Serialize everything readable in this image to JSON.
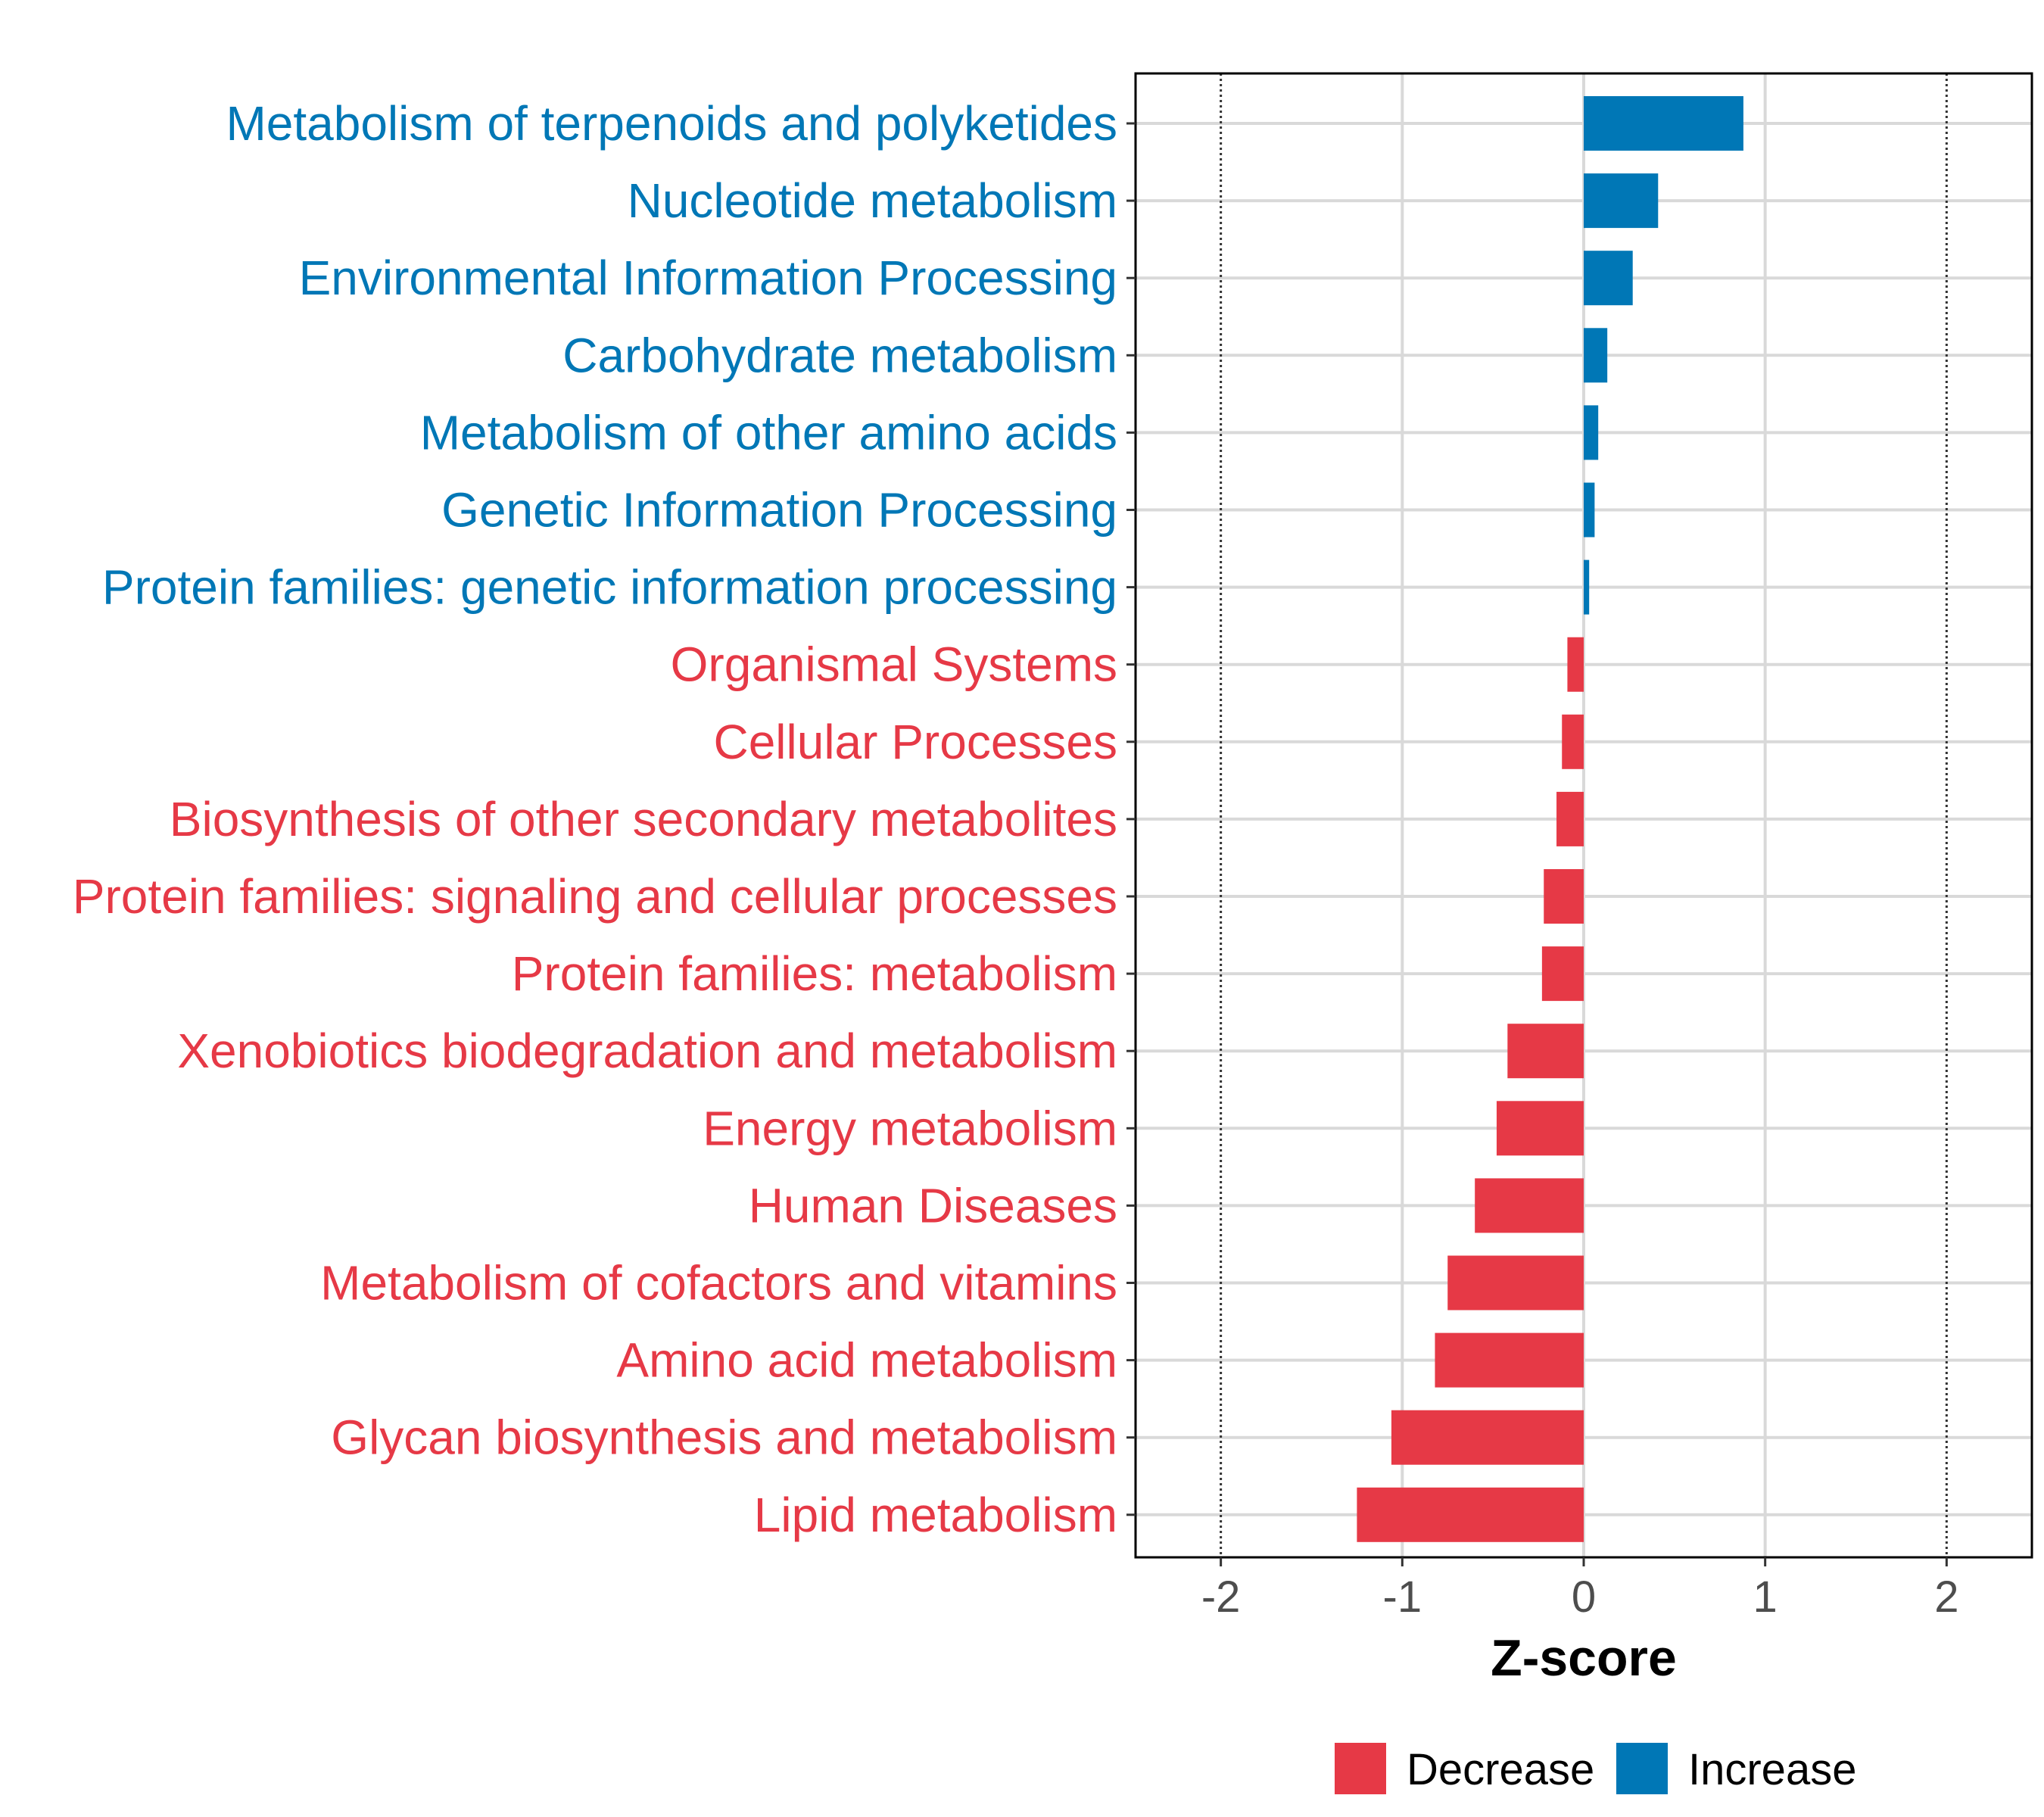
{
  "chart_data": {
    "type": "bar",
    "orientation": "horizontal",
    "xlabel": "Z-score",
    "ylabel": "",
    "xlim": [
      -2.47,
      2.47
    ],
    "xticks": [
      -2,
      -1,
      0,
      1,
      2
    ],
    "xtick_labels": [
      "-2",
      "-1",
      "0",
      "1",
      "2"
    ],
    "reference_lines": [
      -2,
      2
    ],
    "grid": true,
    "legend_position": "bottom",
    "colors": {
      "Decrease": "#e63946",
      "Increase": "#0077b6"
    },
    "legend": [
      {
        "name": "Decrease",
        "color": "#e63946"
      },
      {
        "name": "Increase",
        "color": "#0077b6"
      }
    ],
    "categories": [
      "Metabolism of terpenoids and polyketides",
      "Nucleotide metabolism",
      "Environmental Information Processing",
      "Carbohydrate metabolism",
      "Metabolism of other amino acids",
      "Genetic Information Processing",
      "Protein families: genetic information processing",
      "Organismal Systems",
      "Cellular Processes",
      "Biosynthesis of other secondary metabolites",
      "Protein families: signaling and cellular processes",
      "Protein families: metabolism",
      "Xenobiotics biodegradation and metabolism",
      "Energy metabolism",
      "Human Diseases",
      "Metabolism of cofactors and vitamins",
      "Amino acid metabolism",
      "Glycan biosynthesis and metabolism",
      "Lipid metabolism"
    ],
    "values": [
      0.88,
      0.41,
      0.27,
      0.13,
      0.08,
      0.06,
      0.03,
      -0.09,
      -0.12,
      -0.15,
      -0.22,
      -0.23,
      -0.42,
      -0.48,
      -0.6,
      -0.75,
      -0.82,
      -1.06,
      -1.25
    ],
    "groups": [
      "Increase",
      "Increase",
      "Increase",
      "Increase",
      "Increase",
      "Increase",
      "Increase",
      "Decrease",
      "Decrease",
      "Decrease",
      "Decrease",
      "Decrease",
      "Decrease",
      "Decrease",
      "Decrease",
      "Decrease",
      "Decrease",
      "Decrease",
      "Decrease"
    ]
  }
}
